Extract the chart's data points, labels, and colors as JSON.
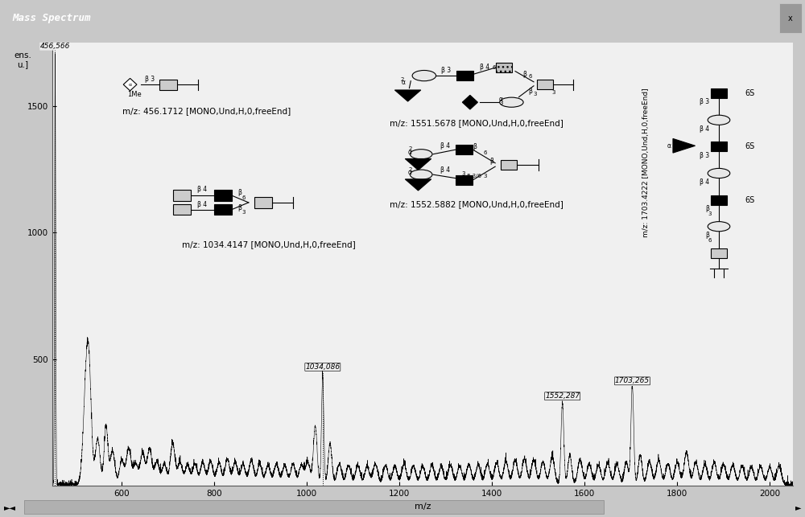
{
  "title": "Mass Spectrum",
  "title_bar_color": "#555555",
  "bg_color": "#c8c8c8",
  "plot_bg_color": "#f0f0f0",
  "xlabel": "m/z",
  "ylabel": "ens.\nu.]",
  "xlim": [
    450,
    2050
  ],
  "ylim": [
    0,
    1750
  ],
  "yticks": [
    500,
    1000,
    1500
  ],
  "xticks": [
    600,
    800,
    1000,
    1200,
    1400,
    1600,
    1800,
    2000
  ],
  "peak_data": [
    [
      456,
      1700,
      1.2
    ],
    [
      523,
      380,
      6
    ],
    [
      530,
      310,
      5
    ],
    [
      548,
      180,
      5
    ],
    [
      566,
      230,
      4
    ],
    [
      580,
      130,
      5
    ],
    [
      600,
      95,
      5
    ],
    [
      615,
      140,
      5
    ],
    [
      630,
      80,
      5
    ],
    [
      645,
      120,
      5
    ],
    [
      660,
      140,
      5
    ],
    [
      676,
      90,
      5
    ],
    [
      692,
      80,
      5
    ],
    [
      710,
      160,
      5
    ],
    [
      726,
      85,
      5
    ],
    [
      742,
      75,
      5
    ],
    [
      758,
      80,
      5
    ],
    [
      775,
      85,
      5
    ],
    [
      792,
      90,
      5
    ],
    [
      810,
      85,
      5
    ],
    [
      828,
      100,
      5
    ],
    [
      845,
      85,
      5
    ],
    [
      862,
      80,
      5
    ],
    [
      880,
      95,
      5
    ],
    [
      898,
      80,
      5
    ],
    [
      916,
      75,
      5
    ],
    [
      934,
      80,
      5
    ],
    [
      952,
      75,
      5
    ],
    [
      970,
      80,
      5
    ],
    [
      988,
      75,
      5
    ],
    [
      1002,
      85,
      5
    ],
    [
      1018,
      230,
      4
    ],
    [
      1034,
      420,
      2.5
    ],
    [
      1050,
      160,
      4
    ],
    [
      1070,
      80,
      5
    ],
    [
      1090,
      75,
      5
    ],
    [
      1110,
      75,
      5
    ],
    [
      1130,
      70,
      5
    ],
    [
      1148,
      80,
      5
    ],
    [
      1170,
      75,
      5
    ],
    [
      1190,
      70,
      5
    ],
    [
      1210,
      80,
      5
    ],
    [
      1230,
      72,
      5
    ],
    [
      1250,
      70,
      5
    ],
    [
      1270,
      75,
      5
    ],
    [
      1290,
      70,
      5
    ],
    [
      1310,
      75,
      5
    ],
    [
      1330,
      72,
      5
    ],
    [
      1350,
      78,
      5
    ],
    [
      1370,
      75,
      5
    ],
    [
      1390,
      80,
      5
    ],
    [
      1410,
      85,
      5
    ],
    [
      1430,
      90,
      5
    ],
    [
      1450,
      95,
      5
    ],
    [
      1470,
      100,
      5
    ],
    [
      1490,
      95,
      5
    ],
    [
      1510,
      88,
      5
    ],
    [
      1530,
      105,
      5
    ],
    [
      1552,
      320,
      3
    ],
    [
      1568,
      115,
      4
    ],
    [
      1590,
      95,
      5
    ],
    [
      1610,
      80,
      5
    ],
    [
      1630,
      75,
      5
    ],
    [
      1650,
      85,
      5
    ],
    [
      1670,
      78,
      5
    ],
    [
      1690,
      90,
      4
    ],
    [
      1703,
      385,
      3
    ],
    [
      1720,
      115,
      4
    ],
    [
      1740,
      88,
      5
    ],
    [
      1760,
      95,
      5
    ],
    [
      1780,
      80,
      5
    ],
    [
      1800,
      88,
      5
    ],
    [
      1820,
      125,
      5
    ],
    [
      1840,
      88,
      5
    ],
    [
      1860,
      78,
      5
    ],
    [
      1880,
      85,
      5
    ],
    [
      1900,
      78,
      5
    ],
    [
      1920,
      75,
      5
    ],
    [
      1940,
      72,
      5
    ],
    [
      1960,
      68,
      5
    ],
    [
      1980,
      72,
      5
    ],
    [
      2000,
      68,
      5
    ],
    [
      2020,
      70,
      5
    ]
  ]
}
